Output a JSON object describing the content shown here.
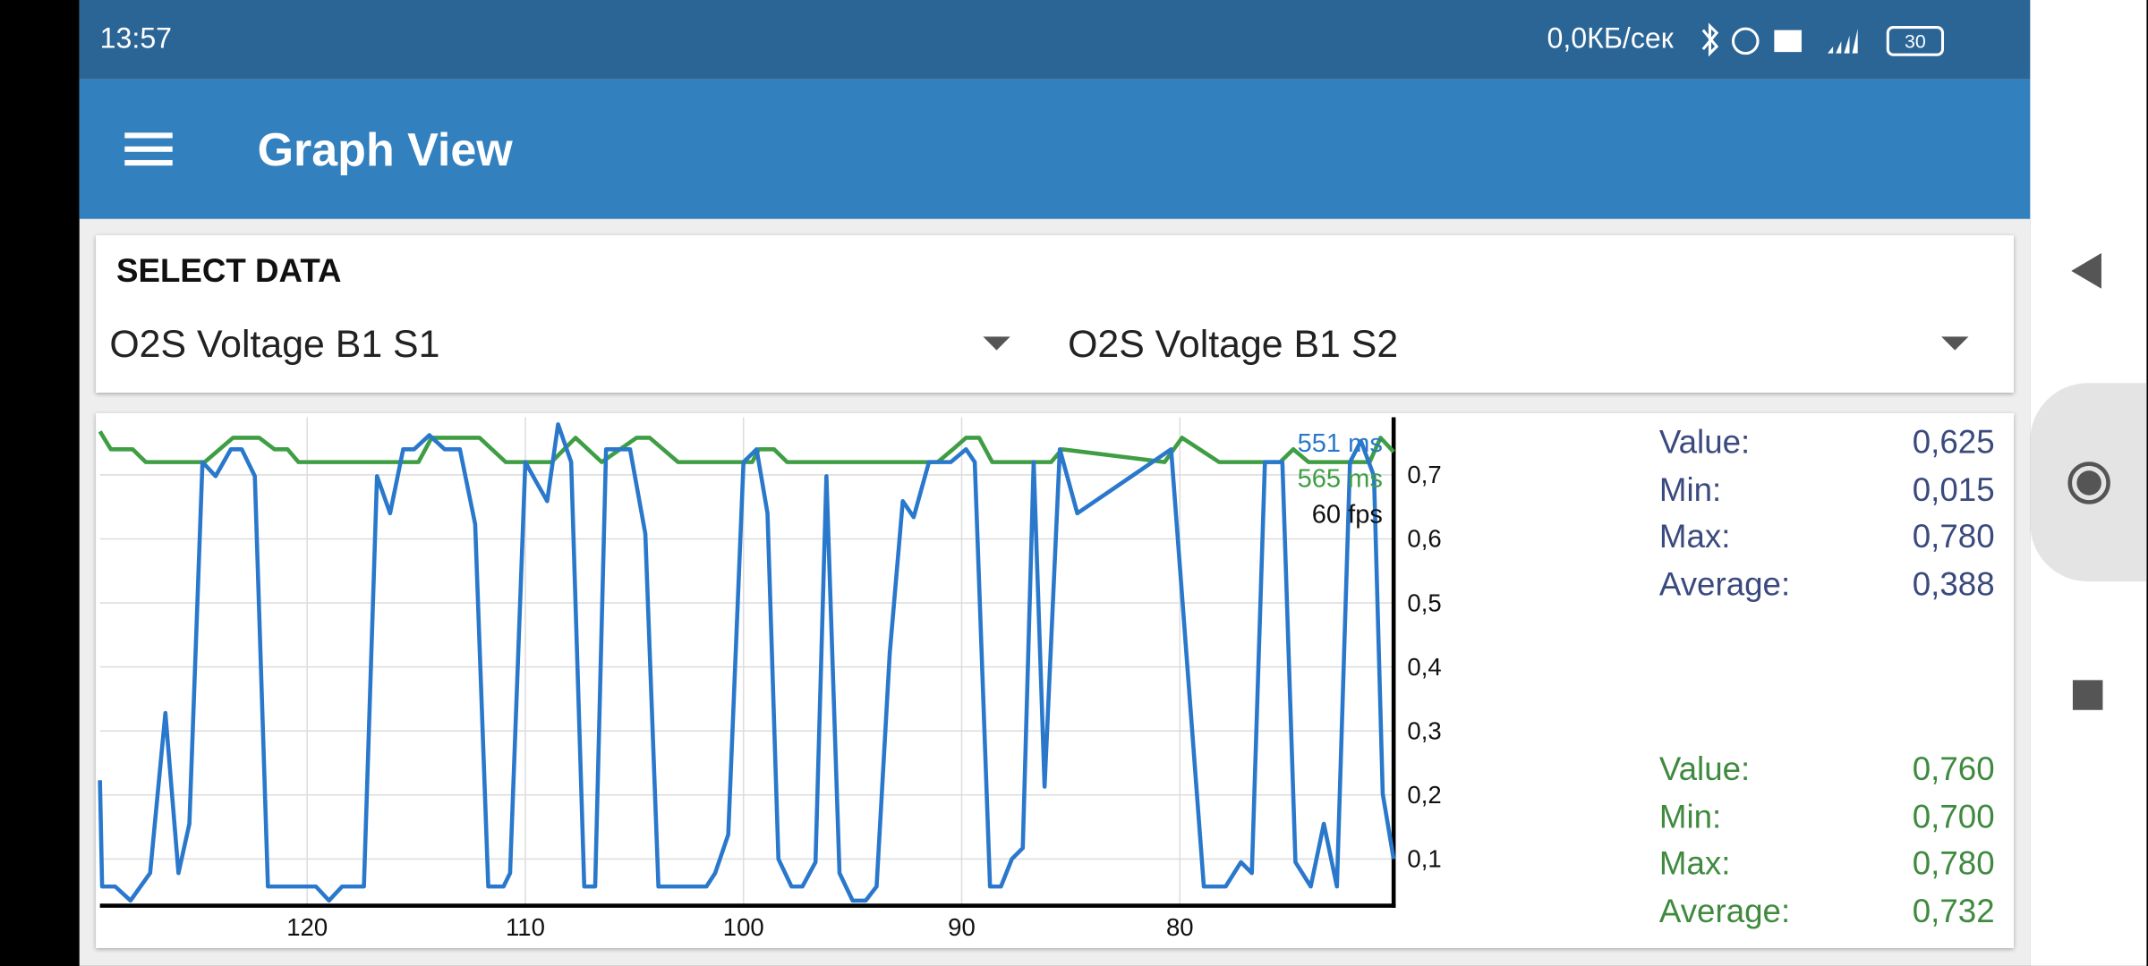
{
  "status_bar": {
    "time": "13:57",
    "network_speed": "0,0КБ/сек",
    "battery": "30"
  },
  "app_bar": {
    "title": "Graph View"
  },
  "select_data": {
    "title": "SELECT DATA",
    "options": [
      "O2S Voltage B1 S1",
      "O2S Voltage B1 S2"
    ]
  },
  "chart_data": {
    "type": "line",
    "xlim": [
      129.5,
      70.2
    ],
    "ylim": [
      0.027,
      0.79
    ],
    "xticks": [
      120,
      110,
      100,
      90,
      80
    ],
    "yticks": [
      {
        "value": 0.1,
        "label": "0,1"
      },
      {
        "value": 0.2,
        "label": "0,2"
      },
      {
        "value": 0.3,
        "label": "0,3"
      },
      {
        "value": 0.4,
        "label": "0,4"
      },
      {
        "value": 0.5,
        "label": "0,5"
      },
      {
        "value": 0.6,
        "label": "0,6"
      },
      {
        "value": 0.7,
        "label": "0,7"
      }
    ],
    "grid": true,
    "y_axis_side": "right",
    "series": [
      {
        "color": "#2a78cc",
        "x": [
          129.5,
          129.4,
          128.8,
          128.1,
          127.2,
          126.5,
          125.9,
          125.4,
          124.8,
          124.2,
          123.5,
          123.0,
          122.4,
          121.8,
          119.6,
          119.0,
          118.4,
          117.4,
          116.8,
          116.2,
          115.6,
          115.1,
          114.4,
          113.7,
          113.0,
          112.3,
          111.7,
          111.0,
          110.7,
          110.0,
          109.5,
          109.0,
          108.5,
          107.9,
          107.3,
          106.8,
          106.3,
          105.2,
          104.5,
          103.9,
          101.7,
          101.3,
          100.7,
          100.0,
          99.4,
          98.9,
          98.4,
          97.8,
          97.3,
          96.7,
          96.2,
          95.6,
          95.0,
          94.4,
          93.9,
          93.3,
          92.7,
          92.2,
          91.5,
          90.5,
          89.8,
          89.4,
          88.7,
          88.2,
          87.7,
          87.2,
          86.7,
          86.2,
          85.5,
          84.7,
          80.4,
          78.9,
          77.9,
          77.2,
          76.7,
          76.1,
          75.3,
          74.7,
          74.0,
          73.4,
          72.8,
          72.2,
          71.7,
          71.1,
          70.7,
          70.2
        ],
        "values": [
          0.223,
          0.057,
          0.057,
          0.035,
          0.078,
          0.328,
          0.078,
          0.155,
          0.72,
          0.698,
          0.74,
          0.74,
          0.698,
          0.057,
          0.057,
          0.035,
          0.057,
          0.057,
          0.698,
          0.64,
          0.74,
          0.74,
          0.762,
          0.74,
          0.74,
          0.623,
          0.057,
          0.057,
          0.078,
          0.72,
          0.689,
          0.659,
          0.779,
          0.72,
          0.057,
          0.057,
          0.74,
          0.74,
          0.608,
          0.057,
          0.057,
          0.078,
          0.138,
          0.72,
          0.74,
          0.64,
          0.1,
          0.057,
          0.057,
          0.095,
          0.698,
          0.078,
          0.035,
          0.035,
          0.057,
          0.42,
          0.659,
          0.634,
          0.72,
          0.72,
          0.74,
          0.72,
          0.057,
          0.057,
          0.1,
          0.117,
          0.72,
          0.213,
          0.74,
          0.64,
          0.74,
          0.057,
          0.057,
          0.095,
          0.078,
          0.72,
          0.72,
          0.095,
          0.057,
          0.155,
          0.057,
          0.72,
          0.753,
          0.698,
          0.202,
          0.1
        ]
      },
      {
        "color": "#3f9e44",
        "x": [
          129.5,
          129.0,
          128.0,
          127.4,
          124.7,
          123.4,
          122.2,
          121.5,
          120.9,
          120.4,
          114.9,
          114.3,
          112.1,
          110.9,
          108.8,
          107.7,
          106.5,
          104.9,
          104.3,
          103.0,
          99.6,
          99.3,
          98.6,
          98.0,
          91.1,
          90.4,
          89.8,
          89.2,
          88.6,
          85.9,
          85.4,
          80.7,
          79.9,
          78.2,
          75.4,
          74.8,
          74.1,
          71.3,
          70.8,
          70.2
        ],
        "values": [
          0.768,
          0.74,
          0.74,
          0.72,
          0.72,
          0.758,
          0.758,
          0.74,
          0.74,
          0.72,
          0.72,
          0.758,
          0.758,
          0.72,
          0.72,
          0.758,
          0.72,
          0.758,
          0.758,
          0.72,
          0.72,
          0.74,
          0.74,
          0.72,
          0.72,
          0.74,
          0.758,
          0.758,
          0.72,
          0.72,
          0.74,
          0.72,
          0.758,
          0.72,
          0.72,
          0.74,
          0.72,
          0.72,
          0.758,
          0.736
        ]
      }
    ],
    "annotations": [
      {
        "text": "551 ms",
        "color": "#2a78cc"
      },
      {
        "text": "565 ms",
        "color": "#3f9e44"
      },
      {
        "text": "60 fps",
        "color": "#111111"
      }
    ]
  },
  "stats": [
    {
      "color": "#3b4a7e",
      "rows": [
        {
          "label": "Value:",
          "value": "0,625"
        },
        {
          "label": "Min:",
          "value": "0,015"
        },
        {
          "label": "Max:",
          "value": "0,780"
        },
        {
          "label": "Average:",
          "value": "0,388"
        }
      ]
    },
    {
      "color": "#3f8a3f",
      "rows": [
        {
          "label": "Value:",
          "value": "0,760"
        },
        {
          "label": "Min:",
          "value": "0,700"
        },
        {
          "label": "Max:",
          "value": "0,780"
        },
        {
          "label": "Average:",
          "value": "0,732"
        }
      ]
    }
  ]
}
